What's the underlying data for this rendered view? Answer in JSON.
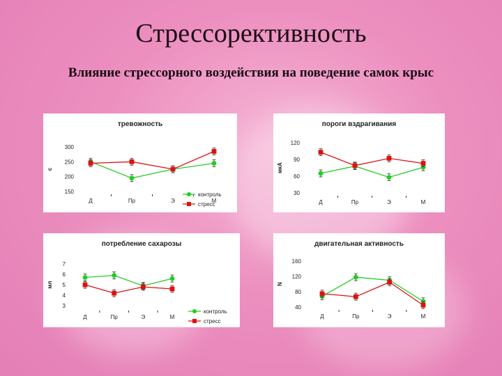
{
  "slide": {
    "title": "Стрессорективность",
    "subtitle": "Влияние стрессорного воздействия на поведение самок крыс"
  },
  "colors": {
    "control": "#22cc22",
    "stress": "#dd1111"
  },
  "chart_data": [
    {
      "type": "line",
      "title": "тревожность",
      "ylabel": "с",
      "categories": [
        "Д",
        "Пр",
        "Э",
        "М"
      ],
      "yticks": [
        150,
        200,
        250,
        300
      ],
      "ylim": [
        150,
        300
      ],
      "legend_placement": "bottom-right",
      "series": [
        {
          "name": "контроль",
          "values": [
            250,
            195,
            225,
            245
          ]
        },
        {
          "name": "стресс",
          "values": [
            245,
            250,
            225,
            285
          ]
        }
      ]
    },
    {
      "type": "line",
      "title": "пороги вздрагивания",
      "ylabel": "мкА",
      "categories": [
        "Д",
        "Пр",
        "Э",
        "М"
      ],
      "yticks": [
        30,
        60,
        90,
        120
      ],
      "ylim": [
        30,
        120
      ],
      "legend_placement": "none",
      "series": [
        {
          "name": "контроль",
          "values": [
            65,
            78,
            58,
            76
          ]
        },
        {
          "name": "стресс",
          "values": [
            103,
            79,
            92,
            83
          ]
        }
      ]
    },
    {
      "type": "line",
      "title": "потребление сахарозы",
      "ylabel": "мл",
      "categories": [
        "Д",
        "Пр",
        "Э",
        "М"
      ],
      "yticks": [
        3,
        4,
        5,
        6,
        7
      ],
      "ylim": [
        3,
        7
      ],
      "legend_placement": "bottom-right",
      "series": [
        {
          "name": "контроль",
          "values": [
            5.7,
            5.9,
            4.9,
            5.6
          ]
        },
        {
          "name": "стресс",
          "values": [
            5.0,
            4.2,
            4.8,
            4.6
          ]
        }
      ]
    },
    {
      "type": "line",
      "title": "двигательная активность",
      "ylabel": "N",
      "categories": [
        "Д",
        "Пр",
        "Э",
        "М"
      ],
      "yticks": [
        40,
        80,
        120,
        160
      ],
      "ylim": [
        40,
        160
      ],
      "legend_placement": "none",
      "series": [
        {
          "name": "контроль",
          "values": [
            68,
            118,
            110,
            55
          ]
        },
        {
          "name": "стресс",
          "values": [
            75,
            67,
            105,
            45
          ]
        }
      ]
    }
  ]
}
